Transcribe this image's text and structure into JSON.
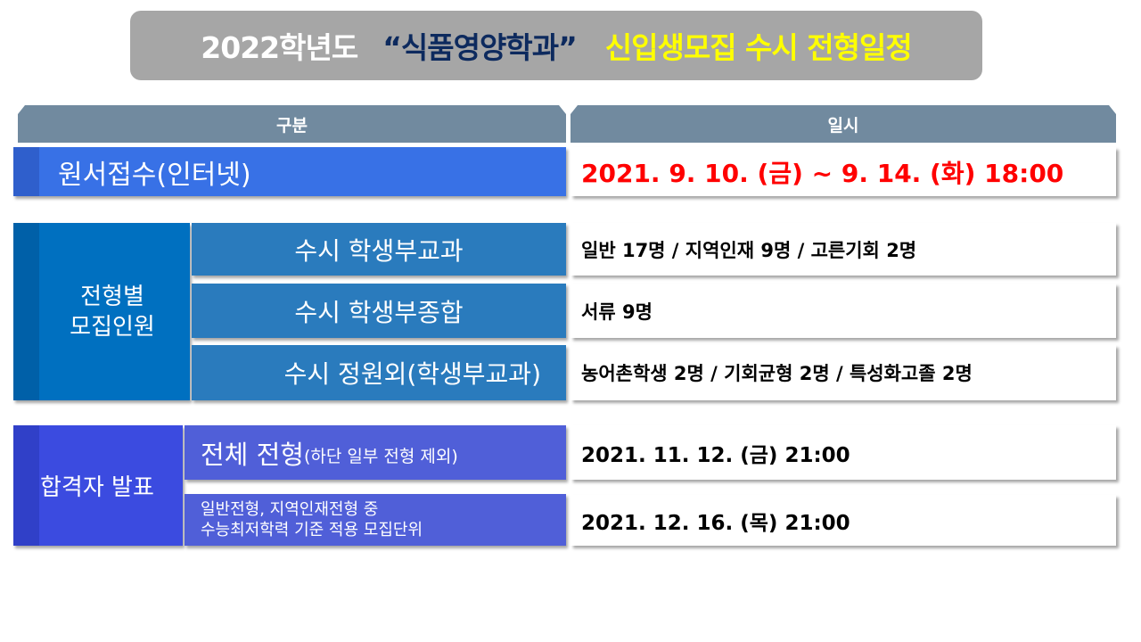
{
  "title": {
    "part1": "2022학년도",
    "part2": "“식품영양학과”",
    "part3": "신입생모집 수시 전형일정"
  },
  "header": {
    "col1": "구분",
    "col2": "일시"
  },
  "application": {
    "label": "원서접수(인터넷)",
    "value": "2021. 9. 10. (금) ~ 9. 14. (화) 18:00",
    "value_color": "#ff0000"
  },
  "quota": {
    "label_line1": "전형별",
    "label_line2": "모집인원",
    "rows": [
      {
        "label": "수시 학생부교과",
        "value": "일반 17명 / 지역인재 9명 / 고른기회 2명"
      },
      {
        "label": "수시 학생부종합",
        "value": "서류 9명"
      },
      {
        "label": "수시 정원외(학생부교과)",
        "value": "농어촌학생 2명 / 기회균형 2명 / 특성화고졸 2명"
      }
    ]
  },
  "announcement": {
    "label": "합격자 발표",
    "rows": [
      {
        "label_main": "전체 전형",
        "label_note": "(하단 일부 전형 제외)",
        "value": "2021. 11. 12. (금) 21:00"
      },
      {
        "label_line1": "일반전형, 지역인재전형 중",
        "label_line2": "수능최저학력 기준 적용 모집단위",
        "value": "2021. 12. 16. (목) 21:00"
      }
    ]
  },
  "colors": {
    "title_bg": "#a6a6a6",
    "header_bg": "#718a9f",
    "application_bg": "#3871e6",
    "quota_bg": "#0070c0",
    "quota_sub_bg": "#2a7bbd",
    "announce_bg": "#3b4be0",
    "announce_sub_bg": "#505fd8",
    "title_highlight": "#ffff00"
  }
}
